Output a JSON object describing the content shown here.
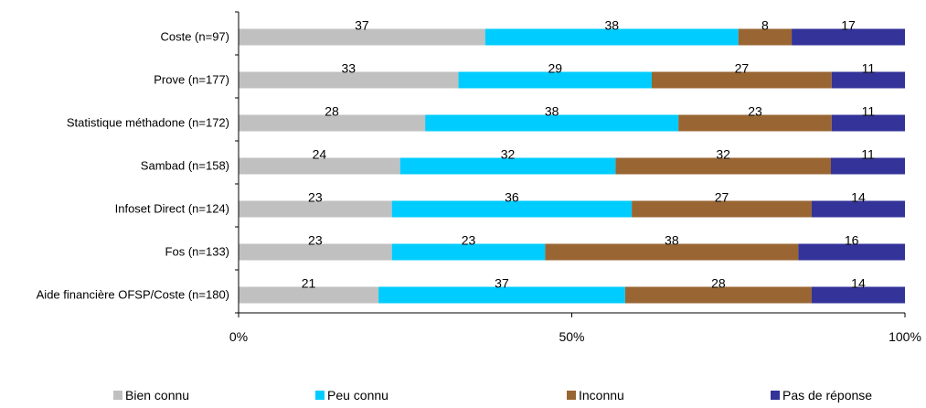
{
  "chart_data": {
    "type": "bar",
    "orientation": "horizontal",
    "stacked": "percent",
    "title": "",
    "xlabel": "",
    "ylabel": "",
    "categories": [
      "Coste (n=97)",
      "Prove (n=177)",
      "Statistique méthadone (n=172)",
      "Sambad (n=158)",
      "Infoset Direct (n=124)",
      "Fos (n=133)",
      "Aide financière OFSP/Coste (n=180)"
    ],
    "series": [
      {
        "name": "Bien connu",
        "color": "#c0c0c0",
        "values": [
          37,
          33,
          28,
          24,
          23,
          23,
          21
        ]
      },
      {
        "name": "Peu connu",
        "color": "#00ccff",
        "values": [
          38,
          29,
          38,
          32,
          36,
          23,
          37
        ]
      },
      {
        "name": "Inconnu",
        "color": "#996633",
        "values": [
          8,
          27,
          23,
          32,
          27,
          38,
          28
        ]
      },
      {
        "name": "Pas de réponse",
        "color": "#333399",
        "values": [
          17,
          11,
          11,
          11,
          14,
          16,
          14
        ]
      }
    ],
    "xlim": [
      0,
      100
    ],
    "x_ticks": [
      "0%",
      "50%",
      "100%"
    ],
    "grid": false,
    "legend_position": "bottom"
  }
}
